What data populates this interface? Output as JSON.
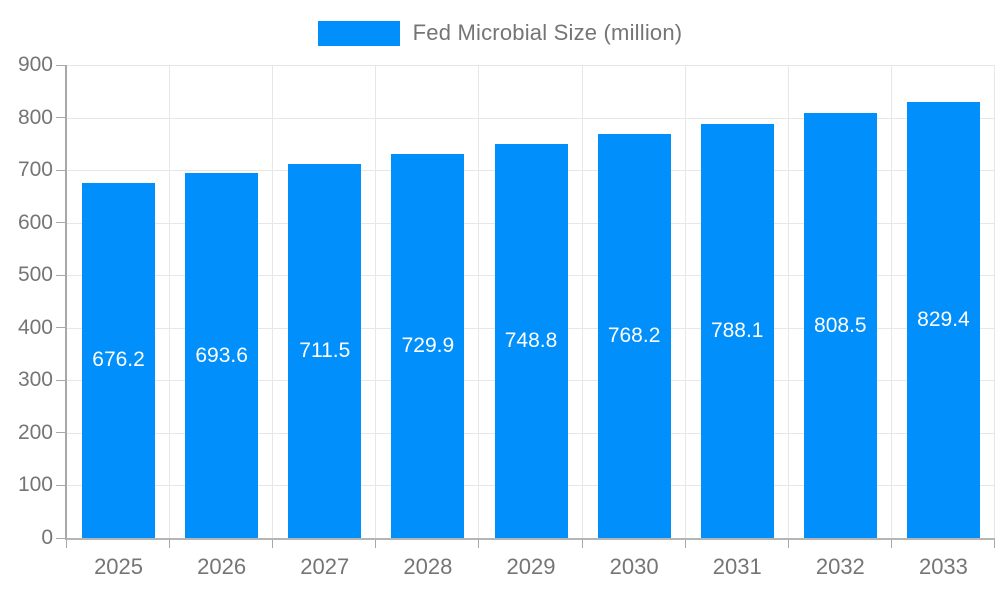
{
  "legend": {
    "label": "Fed Microbial Size (million)",
    "swatch_color": "#008FFB"
  },
  "chart_data": {
    "type": "bar",
    "title": "Fed Microbial Size (million)",
    "series_name": "Fed Microbial Size (million)",
    "categories": [
      "2025",
      "2026",
      "2027",
      "2028",
      "2029",
      "2030",
      "2031",
      "2032",
      "2033"
    ],
    "values": [
      676.2,
      693.6,
      711.5,
      729.9,
      748.8,
      768.2,
      788.1,
      808.5,
      829.4
    ],
    "value_labels": [
      "676.2",
      "693.6",
      "711.5",
      "729.9",
      "748.8",
      "768.2",
      "788.1",
      "808.5",
      "829.4"
    ],
    "xlabel": "",
    "ylabel": "",
    "ylim": [
      0,
      900
    ],
    "ytick_step": 100,
    "ytick_labels": [
      "0",
      "100",
      "200",
      "300",
      "400",
      "500",
      "600",
      "700",
      "800",
      "900"
    ],
    "grid": true,
    "legend_position": "top",
    "bar_color": "#008FFB",
    "bar_value_color": "#ffffff",
    "axis_text_color": "#757575",
    "grid_color": "#e7e7e7"
  }
}
